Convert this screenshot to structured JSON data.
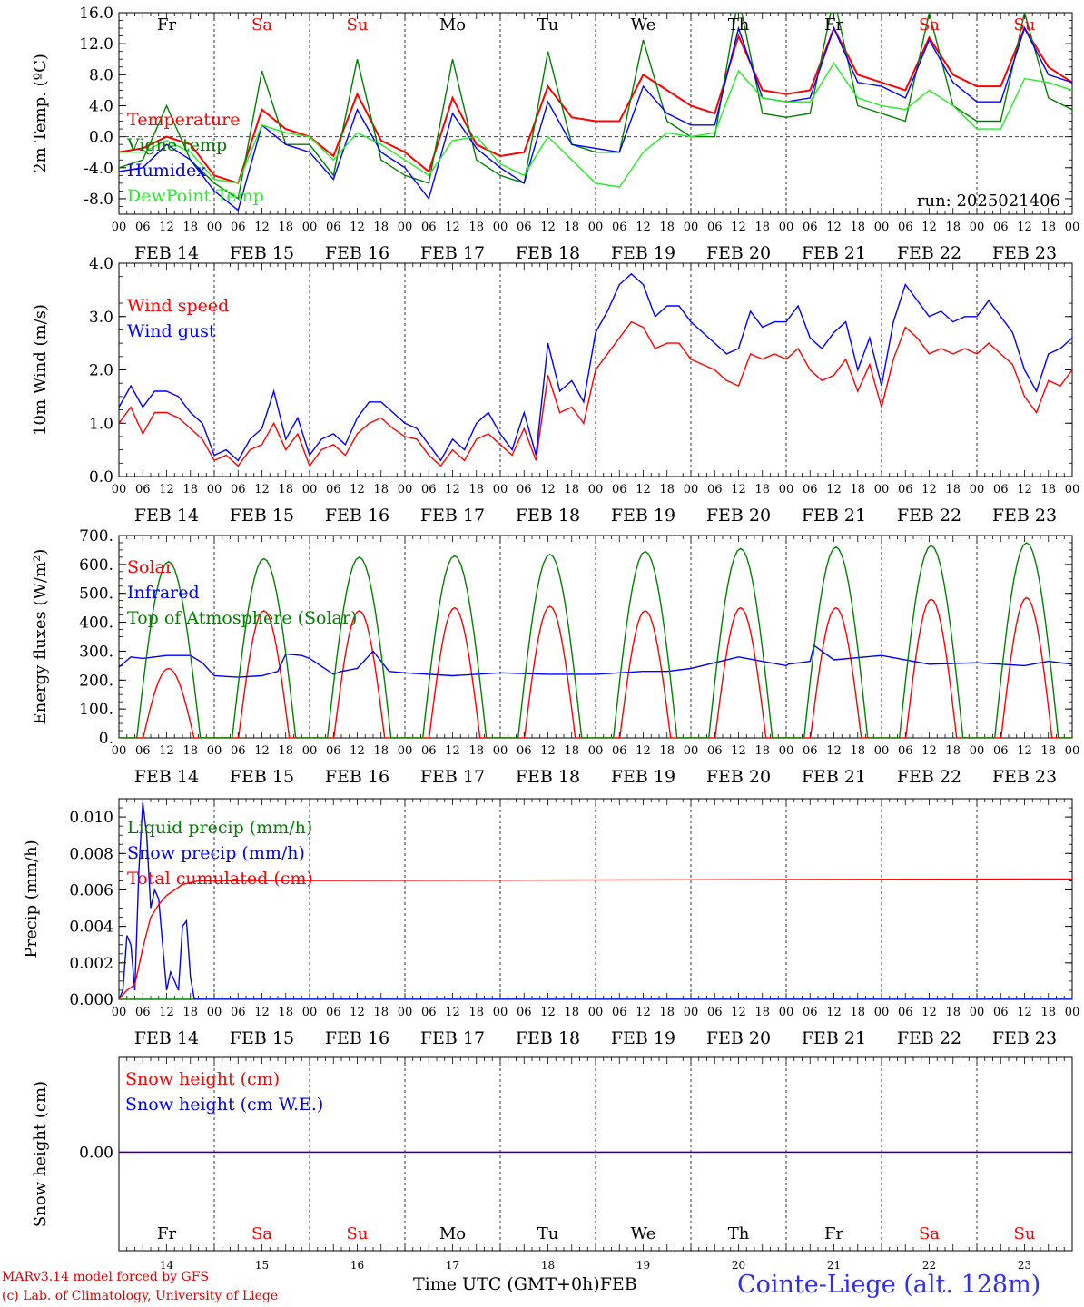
{
  "run_label": "run: 2025021406",
  "days": [
    "FEB 14",
    "FEB 15",
    "FEB 16",
    "FEB 17",
    "FEB 18",
    "FEB 19",
    "FEB 20",
    "FEB 21",
    "FEB 22",
    "FEB 23"
  ],
  "weekdays": [
    "Fr",
    "Sa",
    "Su",
    "Mo",
    "Tu",
    "We",
    "Th",
    "Fr",
    "Sa",
    "Su"
  ],
  "weekend_color": "#ff0000",
  "hour_ticks": [
    "00",
    "06",
    "12",
    "18"
  ],
  "last_tick": "00",
  "day_numbers": [
    "14",
    "15",
    "16",
    "17",
    "18",
    "19",
    "20",
    "21",
    "22",
    "23"
  ],
  "footer": {
    "model": "MARv3.14 model forced by GFS",
    "lab": "(c) Lab. of Climatology, University of Liege",
    "time_label": "Time UTC (GMT+0h)",
    "month": "FEB",
    "station": "Cointe-Liege (alt. 128m)"
  },
  "chart_data": [
    {
      "type": "line",
      "ylabel": "2m Temp. (ºC)",
      "ylim": [
        -10,
        16
      ],
      "yticks": [
        "16.0",
        "12.0",
        "8.0",
        "4.0",
        "0.0",
        "-4.0",
        "-8.0"
      ],
      "zero_line": true,
      "x_unit": "hours since FEB 14 00 UTC",
      "series": [
        {
          "name": "Temperature",
          "color": "#ff0000",
          "x": [
            0,
            6,
            12,
            18,
            24,
            30,
            36,
            42,
            48,
            54,
            60,
            66,
            72,
            78,
            84,
            90,
            96,
            102,
            108,
            114,
            120,
            126,
            132,
            138,
            144,
            150,
            156,
            162,
            168,
            174,
            180,
            186,
            192,
            198,
            204,
            210,
            216,
            222,
            228,
            234,
            240
          ],
          "values": [
            -2,
            -1.5,
            0,
            -1,
            -5,
            -6,
            3.5,
            1,
            0,
            -2.5,
            5.5,
            -0.5,
            -2,
            -4.5,
            5,
            -1,
            -2.5,
            -2,
            6.5,
            2.5,
            2,
            2,
            8,
            6,
            4,
            3,
            13,
            6,
            5.5,
            6,
            14,
            8,
            7,
            6,
            12.8,
            8,
            6.5,
            6.5,
            14,
            9,
            7
          ]
        },
        {
          "name": "Vigne temp",
          "color": "#008000",
          "x": [
            0,
            6,
            12,
            18,
            24,
            30,
            36,
            42,
            48,
            54,
            60,
            66,
            72,
            78,
            84,
            90,
            96,
            102,
            108,
            114,
            120,
            126,
            132,
            138,
            144,
            150,
            156,
            162,
            168,
            174,
            180,
            186,
            192,
            198,
            204,
            210,
            216,
            222,
            228,
            234,
            240
          ],
          "values": [
            -4,
            -3,
            4,
            -3,
            -6,
            -8,
            8.5,
            -1,
            -1,
            -5,
            10,
            -3,
            -5,
            -6,
            10,
            -3,
            -5,
            -6,
            11,
            -1,
            -2,
            -2,
            12.5,
            2,
            0,
            0,
            18,
            3,
            2.5,
            3,
            18,
            4,
            3,
            2,
            16,
            4,
            2,
            2,
            16,
            5,
            3.5
          ]
        },
        {
          "name": "Humidex",
          "color": "#0000ff",
          "x": [
            0,
            6,
            12,
            18,
            24,
            30,
            36,
            42,
            48,
            54,
            60,
            66,
            72,
            78,
            84,
            90,
            96,
            102,
            108,
            114,
            120,
            126,
            132,
            138,
            144,
            150,
            156,
            162,
            168,
            174,
            180,
            186,
            192,
            198,
            204,
            210,
            216,
            222,
            228,
            234,
            240
          ],
          "values": [
            -4.5,
            -4,
            -1,
            -3,
            -7,
            -9.5,
            1.5,
            -1,
            -2,
            -5.5,
            3.5,
            -2,
            -4,
            -8,
            3,
            -1.5,
            -4,
            -6,
            4.5,
            -1,
            -1.5,
            -2,
            6.5,
            3,
            1.5,
            1.5,
            14,
            5,
            4.5,
            5,
            14,
            7,
            6.5,
            5,
            12.5,
            7,
            4.5,
            4.5,
            14,
            8,
            7
          ]
        },
        {
          "name": "DewPoint Temp",
          "color": "#22ee22",
          "x": [
            0,
            6,
            12,
            18,
            24,
            30,
            36,
            42,
            48,
            54,
            60,
            66,
            72,
            78,
            84,
            90,
            96,
            102,
            108,
            114,
            120,
            126,
            132,
            138,
            144,
            150,
            156,
            162,
            168,
            174,
            180,
            186,
            192,
            198,
            204,
            210,
            216,
            222,
            228,
            234,
            240
          ],
          "values": [
            -2,
            -2,
            -0.5,
            -2,
            -5.5,
            -6,
            1.5,
            0.5,
            0,
            -3,
            0.5,
            -1,
            -3,
            -5,
            -0.5,
            0,
            -3.5,
            -5,
            0,
            -3,
            -6,
            -6.5,
            -2,
            0.5,
            0,
            0.5,
            8.5,
            5,
            4.5,
            4.5,
            9.5,
            5,
            4,
            3.5,
            6,
            4,
            1,
            1,
            7.5,
            7,
            6
          ]
        }
      ]
    },
    {
      "type": "line",
      "ylabel": "10m Wind (m/s)",
      "ylim": [
        0,
        4
      ],
      "yticks": [
        "4.0",
        "3.0",
        "2.0",
        "1.0",
        "0.0"
      ],
      "x_unit": "hours since FEB 14 00 UTC",
      "series": [
        {
          "name": "Wind speed",
          "color": "#ff0000",
          "x": [
            0,
            3,
            6,
            9,
            12,
            15,
            18,
            21,
            24,
            27,
            30,
            33,
            36,
            39,
            42,
            45,
            48,
            51,
            54,
            57,
            60,
            63,
            66,
            69,
            72,
            75,
            78,
            81,
            84,
            87,
            90,
            93,
            96,
            99,
            102,
            105,
            108,
            111,
            114,
            117,
            120,
            123,
            126,
            129,
            132,
            135,
            138,
            141,
            144,
            147,
            150,
            153,
            156,
            159,
            162,
            165,
            168,
            171,
            174,
            177,
            180,
            183,
            186,
            189,
            192,
            195,
            198,
            201,
            204,
            207,
            210,
            213,
            216,
            219,
            222,
            225,
            228,
            231,
            234,
            237,
            240
          ],
          "values": [
            1.0,
            1.3,
            0.8,
            1.2,
            1.2,
            1.1,
            0.9,
            0.7,
            0.3,
            0.4,
            0.2,
            0.5,
            0.6,
            1.0,
            0.5,
            0.8,
            0.2,
            0.5,
            0.6,
            0.4,
            0.8,
            1.0,
            1.1,
            0.9,
            0.75,
            0.7,
            0.4,
            0.2,
            0.5,
            0.3,
            0.7,
            0.8,
            0.6,
            0.4,
            0.9,
            0.3,
            1.9,
            1.2,
            1.3,
            1.0,
            2.0,
            2.3,
            2.6,
            2.9,
            2.8,
            2.4,
            2.5,
            2.5,
            2.2,
            2.1,
            2.0,
            1.8,
            1.7,
            2.3,
            2.2,
            2.3,
            2.2,
            2.4,
            2.0,
            1.8,
            1.9,
            2.2,
            1.6,
            2.1,
            1.3,
            2.2,
            2.8,
            2.6,
            2.3,
            2.4,
            2.3,
            2.4,
            2.3,
            2.5,
            2.3,
            2.1,
            1.5,
            1.2,
            1.8,
            1.7,
            2.0
          ]
        },
        {
          "name": "Wind gust",
          "color": "#0000ff",
          "x": [
            0,
            3,
            6,
            9,
            12,
            15,
            18,
            21,
            24,
            27,
            30,
            33,
            36,
            39,
            42,
            45,
            48,
            51,
            54,
            57,
            60,
            63,
            66,
            69,
            72,
            75,
            78,
            81,
            84,
            87,
            90,
            93,
            96,
            99,
            102,
            105,
            108,
            111,
            114,
            117,
            120,
            123,
            126,
            129,
            132,
            135,
            138,
            141,
            144,
            147,
            150,
            153,
            156,
            159,
            162,
            165,
            168,
            171,
            174,
            177,
            180,
            183,
            186,
            189,
            192,
            195,
            198,
            201,
            204,
            207,
            210,
            213,
            216,
            219,
            222,
            225,
            228,
            231,
            234,
            237,
            240
          ],
          "values": [
            1.3,
            1.7,
            1.3,
            1.6,
            1.6,
            1.5,
            1.2,
            1.0,
            0.4,
            0.5,
            0.3,
            0.7,
            0.9,
            1.6,
            0.7,
            1.1,
            0.4,
            0.7,
            0.8,
            0.6,
            1.1,
            1.4,
            1.4,
            1.2,
            1.0,
            0.9,
            0.6,
            0.3,
            0.7,
            0.5,
            1.0,
            1.2,
            0.8,
            0.5,
            1.2,
            0.4,
            2.5,
            1.6,
            1.8,
            1.4,
            2.7,
            3.1,
            3.6,
            3.8,
            3.6,
            3.0,
            3.2,
            3.2,
            2.9,
            2.7,
            2.5,
            2.3,
            2.4,
            3.1,
            2.8,
            2.9,
            2.9,
            3.2,
            2.6,
            2.4,
            2.7,
            2.9,
            2.0,
            2.6,
            1.7,
            2.9,
            3.6,
            3.3,
            3.0,
            3.1,
            2.9,
            3.0,
            3.0,
            3.3,
            3.0,
            2.7,
            2.0,
            1.6,
            2.3,
            2.4,
            2.6
          ]
        }
      ]
    },
    {
      "type": "line",
      "ylabel": "Energy fluxes (W/m²)",
      "ylim": [
        0,
        700
      ],
      "yticks": [
        "700.",
        "600.",
        "500.",
        "400.",
        "300.",
        "200.",
        "100.",
        "0."
      ],
      "x_unit": "hours since FEB 14 00 UTC",
      "series": [
        {
          "name": "Solar",
          "color": "#ff0000",
          "day_peaks": [
            240,
            440,
            440,
            450,
            455,
            440,
            450,
            450,
            480,
            485
          ]
        },
        {
          "name": "Infrared",
          "color": "#0000ff",
          "x": [
            0,
            3,
            6,
            9,
            12,
            15,
            18,
            21,
            24,
            30,
            36,
            40,
            42,
            46,
            48,
            54,
            56,
            60,
            64,
            68,
            72,
            84,
            96,
            108,
            120,
            132,
            138,
            144,
            156,
            168,
            168.5,
            174,
            175,
            180,
            192,
            204,
            216,
            228,
            234,
            240
          ],
          "values": [
            245,
            280,
            275,
            280,
            285,
            285,
            285,
            260,
            215,
            210,
            215,
            230,
            290,
            285,
            275,
            220,
            230,
            240,
            300,
            230,
            225,
            215,
            225,
            220,
            220,
            230,
            230,
            240,
            280,
            250,
            255,
            265,
            320,
            270,
            285,
            255,
            260,
            250,
            265,
            255
          ]
        },
        {
          "name": "Top of Atmosphere (Solar)",
          "color": "#008000",
          "day_peaks": [
            610,
            620,
            625,
            630,
            635,
            645,
            655,
            660,
            665,
            675
          ]
        }
      ]
    },
    {
      "type": "line",
      "ylabel": "Precip (mm/h)",
      "ylim": [
        0,
        0.011
      ],
      "yticks": [
        "0.010",
        "0.008",
        "0.006",
        "0.004",
        "0.002",
        "0.000"
      ],
      "x_unit": "hours since FEB 14 00 UTC",
      "series": [
        {
          "name": "Liquid precip (mm/h)",
          "color": "#008000",
          "x": [
            0,
            240
          ],
          "values": [
            0,
            0
          ]
        },
        {
          "name": "Snow precip (mm/h)",
          "color": "#0000ff",
          "x": [
            0,
            1,
            2,
            3,
            4,
            5,
            6,
            7,
            8,
            9,
            10,
            11,
            12,
            13,
            14,
            15,
            16,
            17,
            18,
            19,
            20,
            240
          ],
          "values": [
            0,
            0.0005,
            0.0035,
            0.003,
            0.0005,
            0.007,
            0.0108,
            0.009,
            0.005,
            0.006,
            0.0055,
            0.003,
            0.0005,
            0.0015,
            0.001,
            0.0005,
            0.004,
            0.0043,
            0.0012,
            0,
            0,
            0
          ]
        },
        {
          "name": "Total cumulated (cm)",
          "color": "#ff0000",
          "x": [
            0,
            2,
            4,
            6,
            8,
            10,
            12,
            14,
            16,
            18,
            20,
            240
          ],
          "values": [
            0,
            0.0005,
            0.0008,
            0.0028,
            0.0045,
            0.0052,
            0.0057,
            0.006,
            0.0063,
            0.0064,
            0.0065,
            0.0066
          ]
        }
      ]
    },
    {
      "type": "line",
      "ylabel": "Snow height (cm)",
      "yticks": [
        "0.00"
      ],
      "x_unit": "hours since FEB 14 00 UTC",
      "series": [
        {
          "name": "Snow height (cm)",
          "color": "#ff0000",
          "x": [
            0,
            240
          ],
          "values": [
            0,
            0
          ]
        },
        {
          "name": "Snow height (cm W.E.)",
          "color": "#0000ff",
          "x": [
            0,
            240
          ],
          "values": [
            0,
            0
          ]
        }
      ]
    }
  ]
}
